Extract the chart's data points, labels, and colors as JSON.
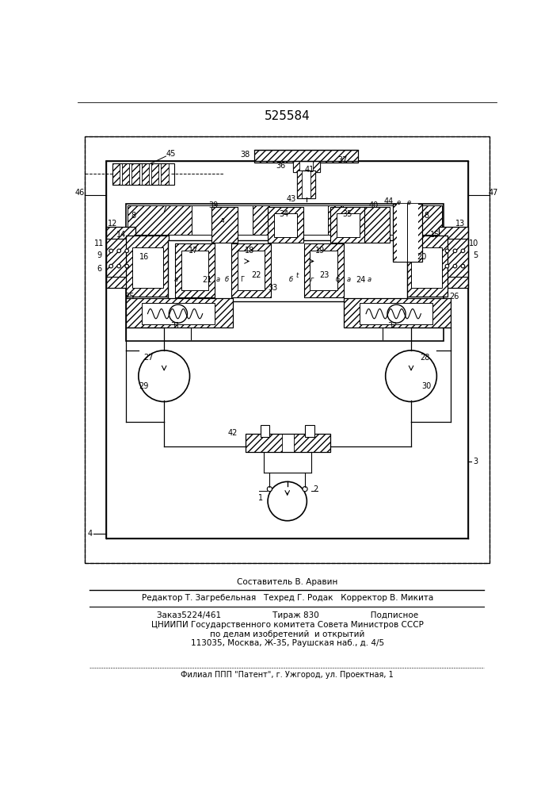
{
  "patent_number": "525584",
  "bg_color": "#ffffff",
  "footer_lines": [
    "Составитель В. Аравин",
    "Редактор Т. Загребельная   Техред Г. Родак   Корректор В. Микита",
    "Заказ5224/461                    Тираж 830                    Подписное",
    "ЦНИИПИ Государственного комитета Совета Министров СССР",
    "по делам изобретений  и открытий",
    "113035, Москва, Ж-35, Раушская наб., д. 4/5",
    "Филиал ППП \"Патент\", г. Ужгород, ул. Проектная, 1"
  ]
}
